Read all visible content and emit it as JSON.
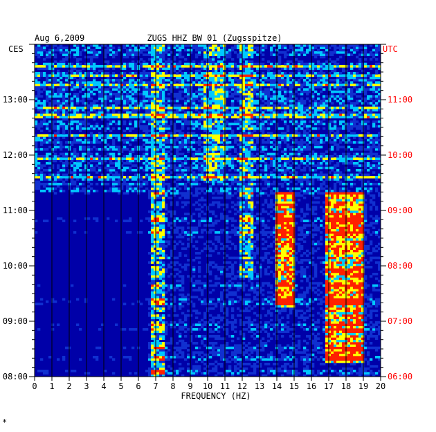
{
  "chart_data": {
    "type": "heatmap",
    "date": "Aug 6,2009",
    "title": "ZUGS HHZ BW 01 (Zugsspitze)",
    "left_timezone": "CES",
    "right_timezone": "UTC",
    "xlabel": "FREQUENCY (HZ)",
    "xlim": [
      0,
      20
    ],
    "x_ticks": [
      "0",
      "1",
      "2",
      "3",
      "4",
      "5",
      "6",
      "7",
      "8",
      "9",
      "10",
      "11",
      "12",
      "13",
      "14",
      "15",
      "16",
      "17",
      "18",
      "19",
      "20"
    ],
    "y_ticks_left": [
      "08:00",
      "09:00",
      "10:00",
      "11:00",
      "12:00",
      "13:00"
    ],
    "y_ticks_right": [
      "06:00",
      "07:00",
      "08:00",
      "09:00",
      "10:00",
      "11:00"
    ],
    "time_range_ces": [
      "08:00",
      "14:00"
    ],
    "colors": {
      "background": "#0000a8",
      "low": "#1030d0",
      "mid": "#00c8ff",
      "high": "#ffff00",
      "peak": "#ff2000",
      "right_axis": "#ff0000",
      "grid": "#000000"
    },
    "energy_bands": [
      {
        "freq_hz": [
          6.8,
          7.6
        ],
        "time_ces": [
          "08:00",
          "14:00"
        ],
        "level": "moderate"
      },
      {
        "freq_hz": [
          9.8,
          11.0
        ],
        "time_ces": [
          "11:30",
          "14:00"
        ],
        "level": "moderate"
      },
      {
        "freq_hz": [
          11.9,
          12.7
        ],
        "time_ces": [
          "09:45",
          "14:00"
        ],
        "level": "moderate"
      },
      {
        "freq_hz": [
          14.0,
          15.0
        ],
        "time_ces": [
          "09:15",
          "11:20"
        ],
        "level": "high"
      },
      {
        "freq_hz": [
          16.8,
          19.0
        ],
        "time_ces": [
          "08:15",
          "11:20"
        ],
        "level": "high"
      },
      {
        "freq_hz": [
          0.0,
          6.5
        ],
        "time_ces": [
          "08:00",
          "11:20"
        ],
        "level": "quiet"
      }
    ]
  },
  "footer_mark": "*"
}
